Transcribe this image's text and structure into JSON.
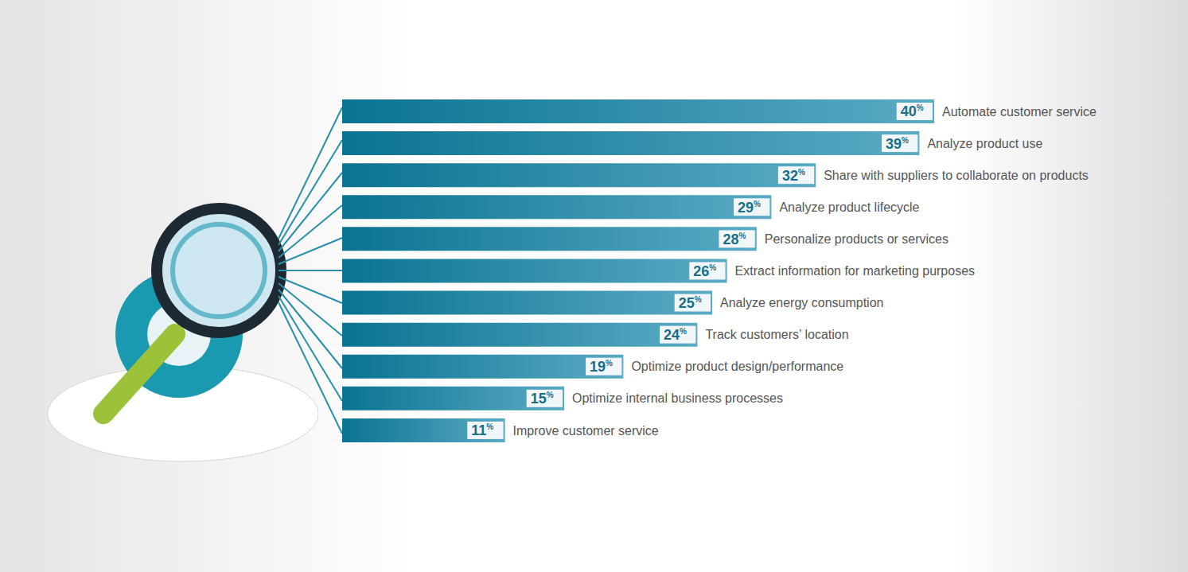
{
  "chart_data": {
    "type": "bar",
    "orientation": "horizontal",
    "categories": [
      "Automate customer service",
      "Analyze product use",
      "Share with suppliers to collaborate on products",
      "Analyze product lifecycle",
      "Personalize products or services",
      "Extract information for marketing purposes",
      "Analyze energy consumption",
      "Track customers’ location",
      "Optimize product design/performance",
      "Optimize internal business processes",
      "Improve customer service"
    ],
    "values": [
      40,
      39,
      32,
      29,
      28,
      26,
      25,
      24,
      19,
      15,
      11
    ],
    "value_labels": [
      "40%",
      "39%",
      "32%",
      "29%",
      "28%",
      "26%",
      "25%",
      "24%",
      "19%",
      "15%",
      "11%"
    ],
    "color": "#5aaac4",
    "xlim": [
      0,
      40
    ],
    "data_labels": true,
    "tick_labels": false
  }
}
